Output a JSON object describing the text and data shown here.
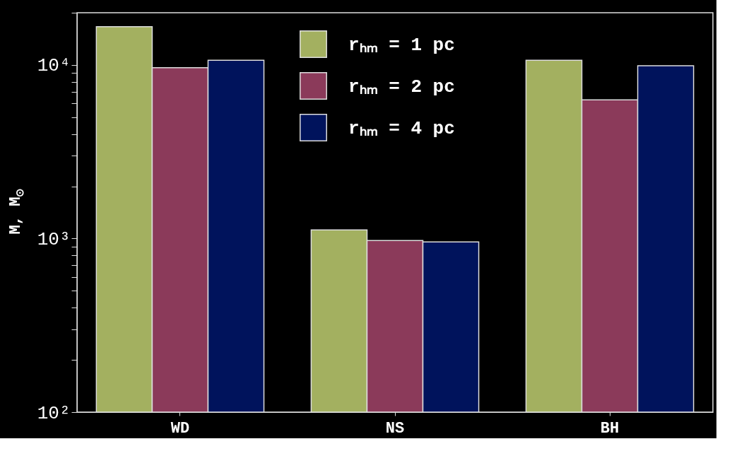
{
  "chart_data": {
    "type": "bar",
    "ylabel": "M, M$_{⊙}$",
    "categories": [
      "WD",
      "NS",
      "BH"
    ],
    "series": [
      {
        "name": "rₕₘ = 1 pc",
        "color": "#a3b060",
        "values": [
          16600,
          1120,
          10650
        ]
      },
      {
        "name": "rₕₘ = 2 pc",
        "color": "#8b3a5a",
        "values": [
          9650,
          975,
          6300
        ]
      },
      {
        "name": "rₕₘ = 4 pc",
        "color": "#00135c",
        "values": [
          10650,
          955,
          9900
        ]
      }
    ],
    "log": "y",
    "ylim": [
      100,
      20000
    ],
    "yticks": [
      {
        "value": 100,
        "label": "10²"
      },
      {
        "value": 200,
        "label": null
      },
      {
        "value": 300,
        "label": null
      },
      {
        "value": 400,
        "label": null
      },
      {
        "value": 500,
        "label": null
      },
      {
        "value": 600,
        "label": null
      },
      {
        "value": 700,
        "label": null
      },
      {
        "value": 800,
        "label": null
      },
      {
        "value": 900,
        "label": null
      },
      {
        "value": 1000,
        "label": "10³"
      },
      {
        "value": 2000,
        "label": null
      },
      {
        "value": 3000,
        "label": null
      },
      {
        "value": 4000,
        "label": null
      },
      {
        "value": 5000,
        "label": null
      },
      {
        "value": 6000,
        "label": null
      },
      {
        "value": 7000,
        "label": null
      },
      {
        "value": 8000,
        "label": null
      },
      {
        "value": 9000,
        "label": null
      },
      {
        "value": 10000,
        "label": "10⁴"
      },
      {
        "value": 20000,
        "label": null
      }
    ],
    "legend": "top",
    "grid": false
  }
}
